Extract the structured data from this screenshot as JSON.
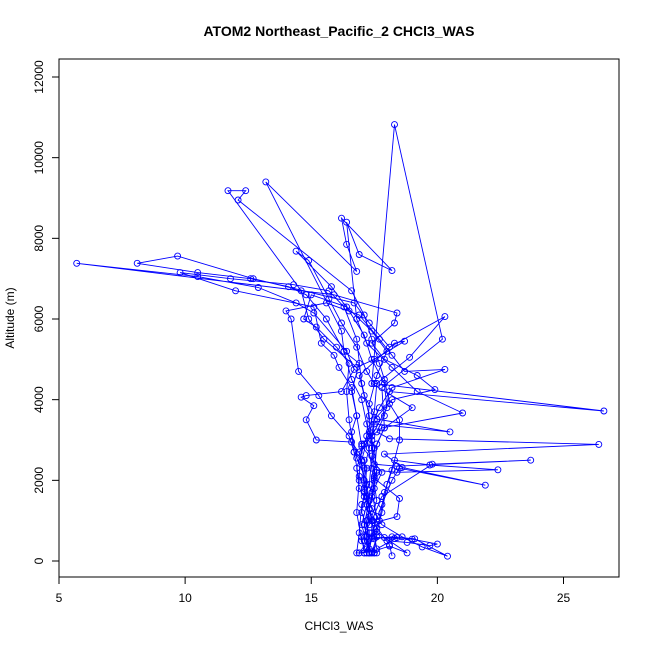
{
  "chart_data": {
    "type": "line",
    "title": "ATOM2 Northeast_Pacific_2 CHCl3_WAS",
    "xlabel": "CHCl3_WAS",
    "ylabel": "Altitude (m)",
    "xlim": [
      5,
      27.2
    ],
    "ylim": [
      0,
      12000
    ],
    "xticks": [
      "5",
      "10",
      "15",
      "20",
      "25"
    ],
    "yticks": [
      "0",
      "2000",
      "4000",
      "6000",
      "8000",
      "10000",
      "12000"
    ],
    "grid": false,
    "legend": "none",
    "markers": "open-circle",
    "colors": {
      "series": "#0000ff",
      "axis": "#000000"
    },
    "series": [
      {
        "values": [
          [
            17.4,
            200
          ],
          [
            17.1,
            500
          ],
          [
            17.2,
            1000
          ],
          [
            17.4,
            1600
          ],
          [
            17.6,
            2200
          ],
          [
            17.5,
            2800
          ],
          [
            17.2,
            3400
          ],
          [
            17.0,
            4000
          ],
          [
            16.6,
            4500
          ],
          [
            16.3,
            5200
          ],
          [
            15.6,
            6000
          ],
          [
            14.8,
            6600
          ],
          [
            14.1,
            6800
          ],
          [
            12.6,
            7000
          ],
          [
            10.5,
            7150
          ],
          [
            8.1,
            7380
          ],
          [
            9.7,
            7560
          ],
          [
            12.7,
            7000
          ],
          [
            16.7,
            6400
          ],
          [
            17.3,
            5900
          ],
          [
            18.1,
            5300
          ],
          [
            20.3,
            6060
          ],
          [
            18.9,
            5050
          ],
          [
            17.6,
            4400
          ],
          [
            17.5,
            3700
          ],
          [
            17.1,
            2900
          ],
          [
            16.8,
            2300
          ],
          [
            16.9,
            1800
          ],
          [
            17.4,
            1300
          ],
          [
            17.8,
            900
          ],
          [
            18.6,
            600
          ],
          [
            19.4,
            350
          ],
          [
            20.4,
            120
          ],
          [
            19.1,
            550
          ],
          [
            18.2,
            600
          ],
          [
            17.3,
            550
          ],
          [
            16.9,
            200
          ],
          [
            17.4,
            230
          ],
          [
            18.1,
            370
          ],
          [
            18.8,
            200
          ],
          [
            17.6,
            720
          ],
          [
            17.8,
            1200
          ],
          [
            18.0,
            1900
          ],
          [
            18.3,
            2500
          ],
          [
            19.7,
            2380
          ],
          [
            22.4,
            2260
          ],
          [
            18.4,
            2200
          ],
          [
            17.6,
            2250
          ],
          [
            17.5,
            2050
          ],
          [
            18.5,
            1550
          ],
          [
            18.4,
            1100
          ],
          [
            17.5,
            950
          ]
        ]
      },
      {
        "values": [
          [
            17.3,
            200
          ],
          [
            17.4,
            700
          ],
          [
            17.8,
            1400
          ],
          [
            18.2,
            2000
          ],
          [
            18.5,
            2300
          ],
          [
            21.9,
            1880
          ],
          [
            18.6,
            2320
          ],
          [
            17.9,
            2650
          ],
          [
            26.4,
            2890
          ],
          [
            18.1,
            3030
          ],
          [
            17.6,
            3200
          ],
          [
            17.9,
            3600
          ],
          [
            18.1,
            4200
          ],
          [
            26.6,
            3720
          ],
          [
            17.5,
            4400
          ],
          [
            17.2,
            4700
          ],
          [
            16.8,
            5300
          ],
          [
            16.2,
            5900
          ],
          [
            15.7,
            6500
          ],
          [
            14.9,
            7450
          ],
          [
            14.4,
            7680
          ],
          [
            15.8,
            6800
          ],
          [
            16.5,
            6200
          ],
          [
            17.1,
            5600
          ],
          [
            17.4,
            5000
          ],
          [
            17.9,
            4400
          ],
          [
            18.0,
            3800
          ],
          [
            17.4,
            3100
          ],
          [
            16.9,
            2700
          ],
          [
            17.1,
            2000
          ],
          [
            17.3,
            1500
          ],
          [
            17.1,
            900
          ],
          [
            17.2,
            600
          ],
          [
            18.3,
            560
          ],
          [
            19.0,
            540
          ],
          [
            20.0,
            420
          ],
          [
            19.7,
            380
          ],
          [
            18.8,
            460
          ],
          [
            18.0,
            500
          ]
        ]
      },
      {
        "values": [
          [
            17.5,
            200
          ],
          [
            17.6,
            800
          ],
          [
            17.3,
            1300
          ],
          [
            17.2,
            1900
          ],
          [
            17.1,
            2500
          ],
          [
            16.6,
            2950
          ],
          [
            15.2,
            3000
          ],
          [
            14.8,
            3500
          ],
          [
            15.1,
            3850
          ],
          [
            14.6,
            4060
          ],
          [
            14.8,
            4100
          ],
          [
            16.2,
            4200
          ],
          [
            16.7,
            4750
          ],
          [
            16.4,
            5200
          ],
          [
            15.1,
            6150
          ],
          [
            14.4,
            6400
          ],
          [
            12.9,
            6780
          ],
          [
            10.5,
            7050
          ],
          [
            5.7,
            7380
          ],
          [
            15.9,
            6600
          ],
          [
            18.4,
            6150
          ],
          [
            18.3,
            5900
          ],
          [
            17.4,
            5400
          ],
          [
            17.9,
            5000
          ],
          [
            19.2,
            4600
          ],
          [
            19.9,
            4250
          ],
          [
            18.2,
            4000
          ],
          [
            17.5,
            3500
          ],
          [
            17.3,
            2800
          ],
          [
            17.1,
            2300
          ],
          [
            17.1,
            1700
          ],
          [
            17.0,
            1200
          ],
          [
            17.3,
            700
          ],
          [
            17.2,
            300
          ],
          [
            17.6,
            200
          ]
        ]
      },
      {
        "values": [
          [
            17.2,
            200
          ],
          [
            17.4,
            600
          ],
          [
            17.4,
            1000
          ],
          [
            17.8,
            1600
          ],
          [
            19.8,
            2400
          ],
          [
            23.7,
            2500
          ],
          [
            18.4,
            2350
          ],
          [
            17.5,
            2400
          ],
          [
            17.4,
            3000
          ],
          [
            17.5,
            3400
          ],
          [
            20.5,
            3200
          ],
          [
            17.6,
            3520
          ],
          [
            17.1,
            4100
          ],
          [
            16.9,
            4600
          ],
          [
            18.3,
            5400
          ],
          [
            18.7,
            5450
          ],
          [
            17.5,
            5000
          ],
          [
            16.8,
            4800
          ],
          [
            15.5,
            5500
          ],
          [
            14.9,
            6000
          ],
          [
            14.6,
            6700
          ],
          [
            11.7,
            9180
          ],
          [
            12.4,
            9180
          ],
          [
            12.1,
            8950
          ],
          [
            16.6,
            6700
          ],
          [
            17.1,
            6100
          ],
          [
            17.4,
            5500
          ],
          [
            17.7,
            4900
          ],
          [
            17.9,
            4500
          ],
          [
            18.1,
            3900
          ],
          [
            18.5,
            3500
          ],
          [
            18.5,
            3000
          ],
          [
            18.2,
            2250
          ],
          [
            17.9,
            1700
          ],
          [
            17.7,
            1000
          ],
          [
            17.4,
            560
          ],
          [
            17.1,
            200
          ]
        ]
      },
      {
        "values": [
          [
            17.5,
            200
          ],
          [
            17.3,
            300
          ],
          [
            17.6,
            1100
          ],
          [
            17.4,
            1700
          ],
          [
            16.8,
            2550
          ],
          [
            16.6,
            3200
          ],
          [
            16.8,
            3600
          ],
          [
            16.6,
            4200
          ],
          [
            16.9,
            4900
          ],
          [
            16.3,
            5200
          ],
          [
            16.2,
            5700
          ],
          [
            13.2,
            9400
          ],
          [
            16.8,
            7180
          ],
          [
            16.4,
            7850
          ],
          [
            16.2,
            8500
          ],
          [
            18.2,
            7200
          ],
          [
            16.9,
            7600
          ],
          [
            16.4,
            8400
          ],
          [
            16.8,
            6000
          ],
          [
            17.2,
            5400
          ],
          [
            18.2,
            4800
          ],
          [
            19.2,
            4200
          ],
          [
            21.0,
            3670
          ],
          [
            17.8,
            3300
          ],
          [
            17.0,
            2900
          ],
          [
            16.9,
            2100
          ],
          [
            17.2,
            1600
          ],
          [
            17.4,
            1000
          ],
          [
            18.1,
            400
          ],
          [
            18.2,
            130
          ]
        ]
      },
      {
        "values": [
          [
            17.3,
            200
          ],
          [
            17.0,
            900
          ],
          [
            17.2,
            1400
          ],
          [
            17.5,
            2100
          ],
          [
            17.6,
            2900
          ],
          [
            17.9,
            3300
          ],
          [
            19.0,
            3800
          ],
          [
            17.4,
            4400
          ],
          [
            18.3,
            10820
          ],
          [
            20.2,
            5500
          ],
          [
            17.8,
            4300
          ],
          [
            17.9,
            3300
          ],
          [
            17.4,
            2600
          ],
          [
            17.3,
            1900
          ],
          [
            17.0,
            1400
          ],
          [
            16.9,
            700
          ],
          [
            16.8,
            200
          ],
          [
            16.9,
            200
          ]
        ]
      },
      {
        "values": [
          [
            17.4,
            200
          ],
          [
            17.6,
            600
          ],
          [
            17.3,
            1100
          ],
          [
            17.1,
            1600
          ],
          [
            17.2,
            2300
          ],
          [
            16.7,
            2700
          ],
          [
            16.5,
            3100
          ],
          [
            15.8,
            3600
          ],
          [
            15.3,
            4100
          ],
          [
            14.5,
            4700
          ],
          [
            14.2,
            6000
          ],
          [
            14.0,
            6200
          ],
          [
            15.6,
            6400
          ],
          [
            16.9,
            6100
          ],
          [
            17.7,
            5500
          ],
          [
            18.2,
            5100
          ],
          [
            18.7,
            4700
          ],
          [
            20.3,
            4750
          ],
          [
            18.2,
            4300
          ],
          [
            17.7,
            3800
          ],
          [
            17.3,
            3200
          ],
          [
            17.0,
            2500
          ],
          [
            17.1,
            1800
          ],
          [
            17.4,
            1000
          ],
          [
            17.6,
            300
          ],
          [
            18.4,
            580
          ],
          [
            17.9,
            580
          ],
          [
            17.5,
            550
          ]
        ]
      },
      {
        "values": [
          [
            17.2,
            200
          ],
          [
            17.0,
            500
          ],
          [
            16.8,
            1200
          ],
          [
            16.9,
            2000
          ],
          [
            16.7,
            2700
          ],
          [
            16.5,
            3500
          ],
          [
            16.4,
            4200
          ],
          [
            16.5,
            4900
          ],
          [
            16.0,
            5300
          ],
          [
            15.2,
            5800
          ],
          [
            14.7,
            6000
          ],
          [
            15.0,
            6600
          ],
          [
            16.4,
            6300
          ],
          [
            17.4,
            5700
          ],
          [
            18.0,
            5200
          ],
          [
            17.6,
            4600
          ],
          [
            17.3,
            3900
          ],
          [
            17.2,
            3100
          ],
          [
            17.4,
            2300
          ],
          [
            17.6,
            1500
          ],
          [
            17.3,
            900
          ],
          [
            17.0,
            600
          ],
          [
            17.1,
            200
          ]
        ]
      },
      {
        "values": [
          [
            17.3,
            200
          ],
          [
            17.2,
            1000
          ],
          [
            17.5,
            1800
          ],
          [
            17.8,
            2200
          ],
          [
            17.0,
            2850
          ],
          [
            16.8,
            3600
          ],
          [
            16.6,
            4300
          ],
          [
            16.1,
            4800
          ],
          [
            15.9,
            5100
          ],
          [
            15.4,
            5400
          ],
          [
            15.1,
            6300
          ],
          [
            12.0,
            6700
          ],
          [
            9.8,
            7150
          ],
          [
            11.8,
            7000
          ],
          [
            14.3,
            6850
          ],
          [
            15.7,
            6700
          ],
          [
            16.3,
            6300
          ],
          [
            16.8,
            5500
          ],
          [
            17.0,
            4400
          ],
          [
            17.3,
            3600
          ],
          [
            17.4,
            2800
          ],
          [
            17.5,
            2000
          ],
          [
            17.3,
            1300
          ],
          [
            17.2,
            600
          ],
          [
            17.3,
            200
          ]
        ]
      }
    ]
  }
}
